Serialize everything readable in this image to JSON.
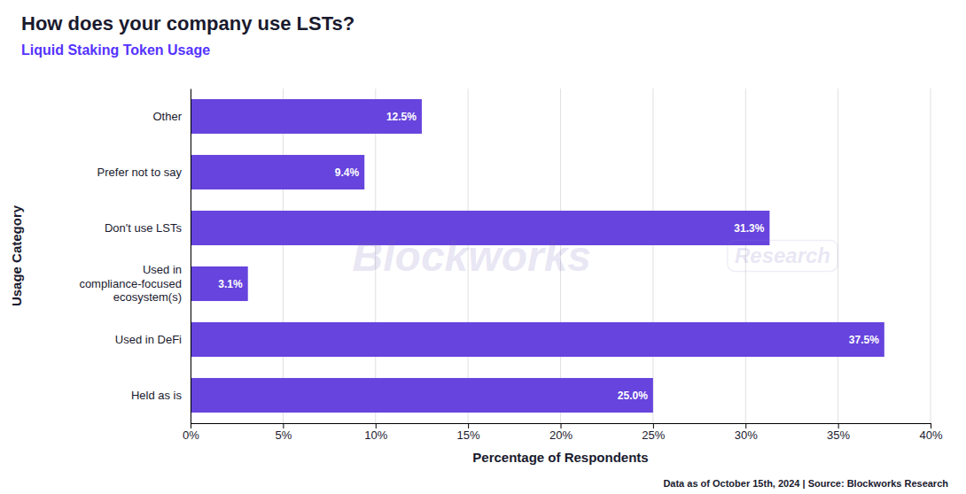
{
  "chart_data": {
    "type": "bar",
    "orientation": "horizontal",
    "title": "How does your company use LSTs?",
    "subtitle": "Liquid Staking Token Usage",
    "xlabel": "Percentage of Respondents",
    "ylabel": "Usage Category",
    "categories": [
      "Held as is",
      "Used in DeFi",
      "Used in\ncompliance-focused\necosystem(s)",
      "Don't use LSTs",
      "Prefer not to say",
      "Other"
    ],
    "values": [
      25.0,
      37.5,
      3.1,
      31.3,
      9.4,
      12.5
    ],
    "value_labels": [
      "25.0%",
      "37.5%",
      "3.1%",
      "31.3%",
      "9.4%",
      "12.5%"
    ],
    "data_labels": true,
    "color": "#6644dd",
    "xlim": [
      0,
      40
    ],
    "xticks": [
      {
        "value": 0,
        "label": "0%"
      },
      {
        "value": 5,
        "label": "5%"
      },
      {
        "value": 10,
        "label": "10%"
      },
      {
        "value": 15,
        "label": "15%"
      },
      {
        "value": 20,
        "label": "20%"
      },
      {
        "value": 25,
        "label": "25%"
      },
      {
        "value": 30,
        "label": "30%"
      },
      {
        "value": 35,
        "label": "35%"
      },
      {
        "value": 40,
        "label": "40%"
      }
    ],
    "grid": true,
    "footnote": "Data as of October 15th, 2024 | Source: Blockworks Research",
    "annotations": [
      "Blockworks",
      "Research"
    ]
  }
}
